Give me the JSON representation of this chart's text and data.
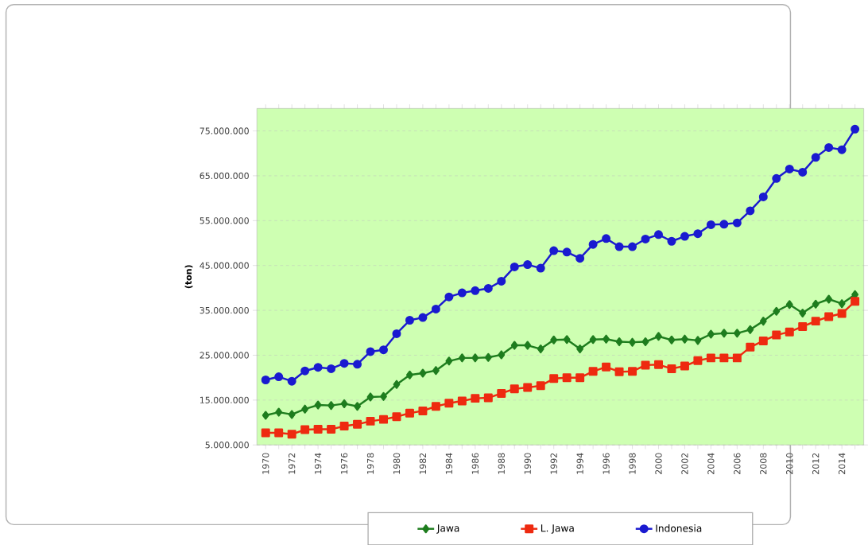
{
  "chart_data": {
    "type": "line",
    "ylabel": "(ton)",
    "categories": [
      "1970",
      null,
      "1972",
      null,
      "1974",
      null,
      "1976",
      null,
      "1978",
      null,
      "1980",
      null,
      "1982",
      null,
      "1984",
      null,
      "1986",
      null,
      "1988",
      null,
      "1990",
      null,
      "1992",
      null,
      "1994",
      null,
      "1996",
      null,
      "1998",
      null,
      "2000",
      null,
      "2002",
      null,
      "2004",
      null,
      "2006",
      null,
      "2008",
      null,
      "2010",
      null,
      "2012",
      null,
      "2014",
      null
    ],
    "series": [
      {
        "name": "Jawa",
        "color": "#1e7d1e",
        "marker": "diamond",
        "values": [
          11600000,
          12300000,
          11800000,
          13000000,
          13900000,
          13800000,
          14200000,
          13600000,
          15700000,
          15800000,
          18500000,
          20600000,
          21000000,
          21600000,
          23700000,
          24400000,
          24400000,
          24500000,
          25100000,
          27200000,
          27200000,
          26400000,
          28400000,
          28500000,
          26400000,
          28500000,
          28600000,
          28000000,
          27900000,
          28000000,
          29200000,
          28400000,
          28600000,
          28300000,
          29700000,
          29900000,
          29900000,
          30700000,
          32600000,
          34800000,
          36300000,
          34400000,
          36400000,
          37500000,
          36500000,
          38500000
        ]
      },
      {
        "name": "L. Jawa",
        "color": "#ee2a10",
        "marker": "square",
        "values": [
          7700000,
          7700000,
          7400000,
          8400000,
          8500000,
          8500000,
          9200000,
          9600000,
          10300000,
          10700000,
          11300000,
          12100000,
          12600000,
          13600000,
          14300000,
          14800000,
          15400000,
          15500000,
          16500000,
          17500000,
          17800000,
          18200000,
          19800000,
          20000000,
          20000000,
          21400000,
          22400000,
          21300000,
          21400000,
          22800000,
          22900000,
          22000000,
          22600000,
          23800000,
          24400000,
          24400000,
          24400000,
          26800000,
          28200000,
          29500000,
          30200000,
          31400000,
          32600000,
          33600000,
          34300000,
          37000000
        ]
      },
      {
        "name": "Indonesia",
        "color": "#1a1ad0",
        "marker": "circle",
        "values": [
          19500000,
          20200000,
          19200000,
          21500000,
          22300000,
          22000000,
          23200000,
          23000000,
          25800000,
          26200000,
          29800000,
          32800000,
          33400000,
          35300000,
          38000000,
          38900000,
          39400000,
          39900000,
          41500000,
          44700000,
          45200000,
          44400000,
          48300000,
          48000000,
          46600000,
          49700000,
          51000000,
          49200000,
          49200000,
          50900000,
          51900000,
          50400000,
          51500000,
          52100000,
          54100000,
          54200000,
          54500000,
          57200000,
          60300000,
          64400000,
          66500000,
          65800000,
          69100000,
          71300000,
          70800000,
          75400000
        ]
      }
    ],
    "ylim": [
      5000000,
      80000000
    ],
    "yticks": [
      {
        "value": 5000000,
        "label": "5.000.000"
      },
      {
        "value": 15000000,
        "label": "15.000.000"
      },
      {
        "value": 25000000,
        "label": "25.000.000"
      },
      {
        "value": 35000000,
        "label": "35.000.000"
      },
      {
        "value": 45000000,
        "label": "45.000.000"
      },
      {
        "value": 55000000,
        "label": "55.000.000"
      },
      {
        "value": 65000000,
        "label": "65.000.000"
      },
      {
        "value": 75000000,
        "label": "75.000.000"
      }
    ],
    "grid": "y",
    "legend": "bottom",
    "line_style": "solid"
  }
}
